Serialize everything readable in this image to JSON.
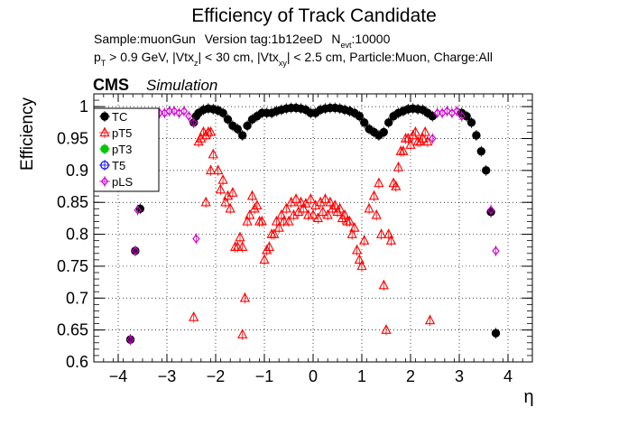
{
  "chart_data": {
    "type": "scatter",
    "title": "Efficiency of Track Candidate",
    "subtitle_line1": {
      "sample": "Sample:muonGun",
      "version": "Version tag:1b12eeD",
      "nevt_label": "N",
      "nevt_sub": "evt",
      "nevt_value": ":10000"
    },
    "subtitle_line2": {
      "p": "p",
      "p_sub": "T",
      "a": " > 0.9 GeV, |Vtx",
      "z_sub": "z",
      "b": "| < 30 cm, |Vtx",
      "xy_sub": "xy",
      "c": "| < 2.5 cm, Particle:Muon, Charge:All"
    },
    "cms_label": "CMS",
    "simulation_label": "Simulation",
    "xlabel": "η",
    "ylabel": "Efficiency",
    "xlim": [
      -4.5,
      4.5
    ],
    "ylim": [
      0.6,
      1.02
    ],
    "xticks": [
      -4,
      -3,
      -2,
      -1,
      0,
      1,
      2,
      3,
      4
    ],
    "xtick_labels": [
      "−4",
      "−3",
      "−2",
      "−1",
      "0",
      "1",
      "2",
      "3",
      "4"
    ],
    "yticks": [
      0.6,
      0.65,
      0.7,
      0.75,
      0.8,
      0.85,
      0.9,
      0.95,
      1.0
    ],
    "ytick_labels": [
      "0.6",
      "0.65",
      "0.7",
      "0.75",
      "0.8",
      "0.85",
      "0.9",
      "0.95",
      "1"
    ],
    "grid": true,
    "legend_position": "top-left",
    "series": [
      {
        "name": "TC",
        "color": "#000000",
        "marker": "filled-circle",
        "x": [
          -3.75,
          -3.65,
          -3.55,
          -2.45,
          -2.4,
          -2.35,
          -2.25,
          -2.15,
          -2.05,
          -1.95,
          -1.85,
          -1.75,
          -1.65,
          -1.55,
          -1.45,
          -1.35,
          -1.25,
          -1.15,
          -1.05,
          -0.95,
          -0.85,
          -0.75,
          -0.65,
          -0.55,
          -0.45,
          -0.35,
          -0.25,
          -0.15,
          -0.05,
          0.05,
          0.15,
          0.25,
          0.35,
          0.45,
          0.55,
          0.65,
          0.75,
          0.85,
          0.95,
          1.05,
          1.15,
          1.25,
          1.35,
          1.45,
          1.55,
          1.65,
          1.75,
          1.85,
          1.95,
          2.05,
          2.15,
          2.25,
          2.35,
          2.45,
          3.05,
          3.15,
          3.25,
          3.35,
          3.45,
          3.55,
          3.65,
          3.75
        ],
        "y": [
          0.635,
          0.774,
          0.84,
          0.975,
          0.985,
          0.99,
          0.995,
          0.997,
          0.996,
          0.994,
          0.99,
          0.98,
          0.97,
          0.965,
          0.955,
          0.97,
          0.98,
          0.985,
          0.99,
          0.99,
          0.99,
          0.993,
          0.995,
          0.997,
          0.998,
          0.998,
          0.997,
          0.995,
          0.99,
          0.99,
          0.995,
          0.997,
          0.998,
          0.998,
          0.997,
          0.995,
          0.993,
          0.99,
          0.985,
          0.975,
          0.965,
          0.96,
          0.955,
          0.96,
          0.975,
          0.985,
          0.99,
          0.993,
          0.996,
          0.997,
          0.996,
          0.995,
          0.99,
          0.985,
          0.99,
          0.985,
          0.975,
          0.955,
          0.93,
          0.9,
          0.835,
          0.645
        ]
      },
      {
        "name": "pT5",
        "color": "#ff0000",
        "marker": "open-triangle",
        "x": [
          -2.45,
          -2.35,
          -2.25,
          -2.2,
          -2.15,
          -2.1,
          -2.05,
          -1.95,
          -1.85,
          -1.75,
          -1.65,
          -1.55,
          -1.5,
          -1.45,
          -1.4,
          -1.35,
          -1.25,
          -1.15,
          -1.05,
          -1.0,
          -0.95,
          -0.9,
          -0.85,
          -0.75,
          -0.65,
          -0.55,
          -0.45,
          -0.35,
          -0.25,
          -0.15,
          -0.05,
          0.05,
          0.15,
          0.25,
          0.35,
          0.45,
          0.55,
          0.65,
          0.75,
          0.85,
          0.9,
          0.95,
          1.0,
          1.05,
          1.15,
          1.25,
          1.35,
          1.45,
          1.5,
          1.55,
          1.65,
          1.75,
          1.85,
          1.95,
          2.05,
          2.1,
          2.15,
          2.2,
          2.25,
          2.35,
          2.4,
          -2.3,
          -2.2,
          -2.1,
          -1.9,
          -1.8,
          -1.7,
          -1.6,
          -1.45,
          -1.3,
          -1.2,
          -1.1,
          -0.8,
          -0.7,
          -0.6,
          -0.5,
          -0.4,
          -0.3,
          -0.2,
          -0.1,
          0.0,
          0.1,
          0.2,
          0.3,
          0.4,
          0.5,
          0.6,
          0.7,
          0.8,
          1.3,
          1.4,
          1.6,
          1.7,
          1.8,
          1.9,
          2.0,
          2.3
        ],
        "y": [
          0.67,
          0.945,
          0.96,
          0.955,
          0.96,
          0.96,
          0.925,
          0.9,
          0.885,
          0.86,
          0.865,
          0.78,
          0.795,
          0.643,
          0.7,
          0.82,
          0.86,
          0.845,
          0.82,
          0.76,
          0.775,
          0.78,
          0.8,
          0.82,
          0.83,
          0.84,
          0.85,
          0.855,
          0.85,
          0.848,
          0.855,
          0.845,
          0.85,
          0.855,
          0.85,
          0.845,
          0.84,
          0.83,
          0.82,
          0.81,
          0.775,
          0.76,
          0.75,
          0.79,
          0.84,
          0.86,
          0.88,
          0.72,
          0.65,
          0.8,
          0.88,
          0.905,
          0.93,
          0.95,
          0.955,
          0.96,
          0.945,
          0.945,
          0.95,
          0.945,
          0.665,
          0.95,
          0.85,
          0.9,
          0.87,
          0.85,
          0.84,
          0.78,
          0.78,
          0.83,
          0.84,
          0.82,
          0.8,
          0.81,
          0.82,
          0.82,
          0.83,
          0.835,
          0.84,
          0.83,
          0.83,
          0.825,
          0.835,
          0.83,
          0.84,
          0.835,
          0.825,
          0.82,
          0.8,
          0.83,
          0.8,
          0.79,
          0.875,
          0.93,
          0.95,
          0.94,
          0.96
        ]
      },
      {
        "name": "pT3",
        "color": "#00c800",
        "marker": "filled-circle",
        "x": [],
        "y": []
      },
      {
        "name": "T5",
        "color": "#0000ff",
        "marker": "open-circle",
        "x": [],
        "y": []
      },
      {
        "name": "pLS",
        "color": "#cc00cc",
        "marker": "open-diamond",
        "x": [
          -3.75,
          -3.65,
          -3.6,
          -3.15,
          -3.05,
          -2.95,
          -2.85,
          -2.75,
          -2.65,
          -2.55,
          -2.45,
          -2.4,
          2.45,
          2.55,
          2.65,
          2.75,
          2.85,
          2.95,
          3.05,
          3.65,
          3.75
        ],
        "y": [
          0.635,
          0.774,
          0.838,
          0.99,
          0.99,
          0.993,
          0.993,
          0.99,
          0.993,
          0.985,
          0.975,
          0.793,
          0.95,
          0.99,
          0.99,
          0.993,
          0.99,
          0.993,
          0.985,
          0.838,
          0.774
        ]
      }
    ]
  }
}
